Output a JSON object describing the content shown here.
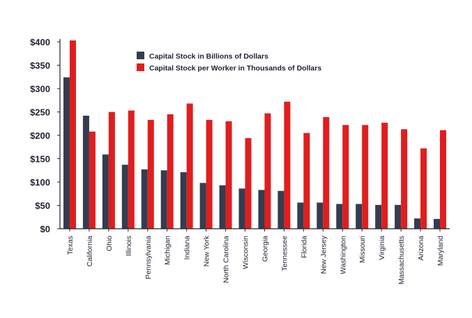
{
  "chart_data": {
    "type": "bar",
    "title": "",
    "xlabel": "",
    "ylabel": "",
    "ylim": [
      0,
      400
    ],
    "yticks": [
      0,
      50,
      100,
      150,
      200,
      250,
      300,
      350,
      400
    ],
    "ytick_labels": [
      "$0",
      "$50",
      "$100",
      "$150",
      "$200",
      "$250",
      "$300",
      "$350",
      "$400"
    ],
    "grid": false,
    "legend_position": "top-center",
    "categories": [
      "Texas",
      "California",
      "Ohio",
      "Illinois",
      "Pennsylvania",
      "Michigan",
      "Indiana",
      "New York",
      "North Carolina",
      "Wisconsin",
      "Georgia",
      "Tennessee",
      "Florida",
      "New Jersey",
      "Washington",
      "Missouri",
      "Virginia",
      "Massachusetts",
      "Arizona",
      "Maryland"
    ],
    "series": [
      {
        "name": "Capital Stock in Billions of Dollars",
        "color": "#363c4f",
        "values": [
          324,
          242,
          159,
          137,
          127,
          125,
          121,
          98,
          93,
          86,
          83,
          81,
          56,
          56,
          53,
          53,
          51,
          51,
          22,
          21
        ]
      },
      {
        "name": "Capital Stock per Worker in Thousands of Dollars",
        "color": "#e01e1e",
        "values": [
          403,
          208,
          250,
          253,
          233,
          245,
          268,
          233,
          230,
          194,
          247,
          272,
          205,
          239,
          222,
          222,
          227,
          213,
          172,
          211
        ]
      }
    ]
  }
}
